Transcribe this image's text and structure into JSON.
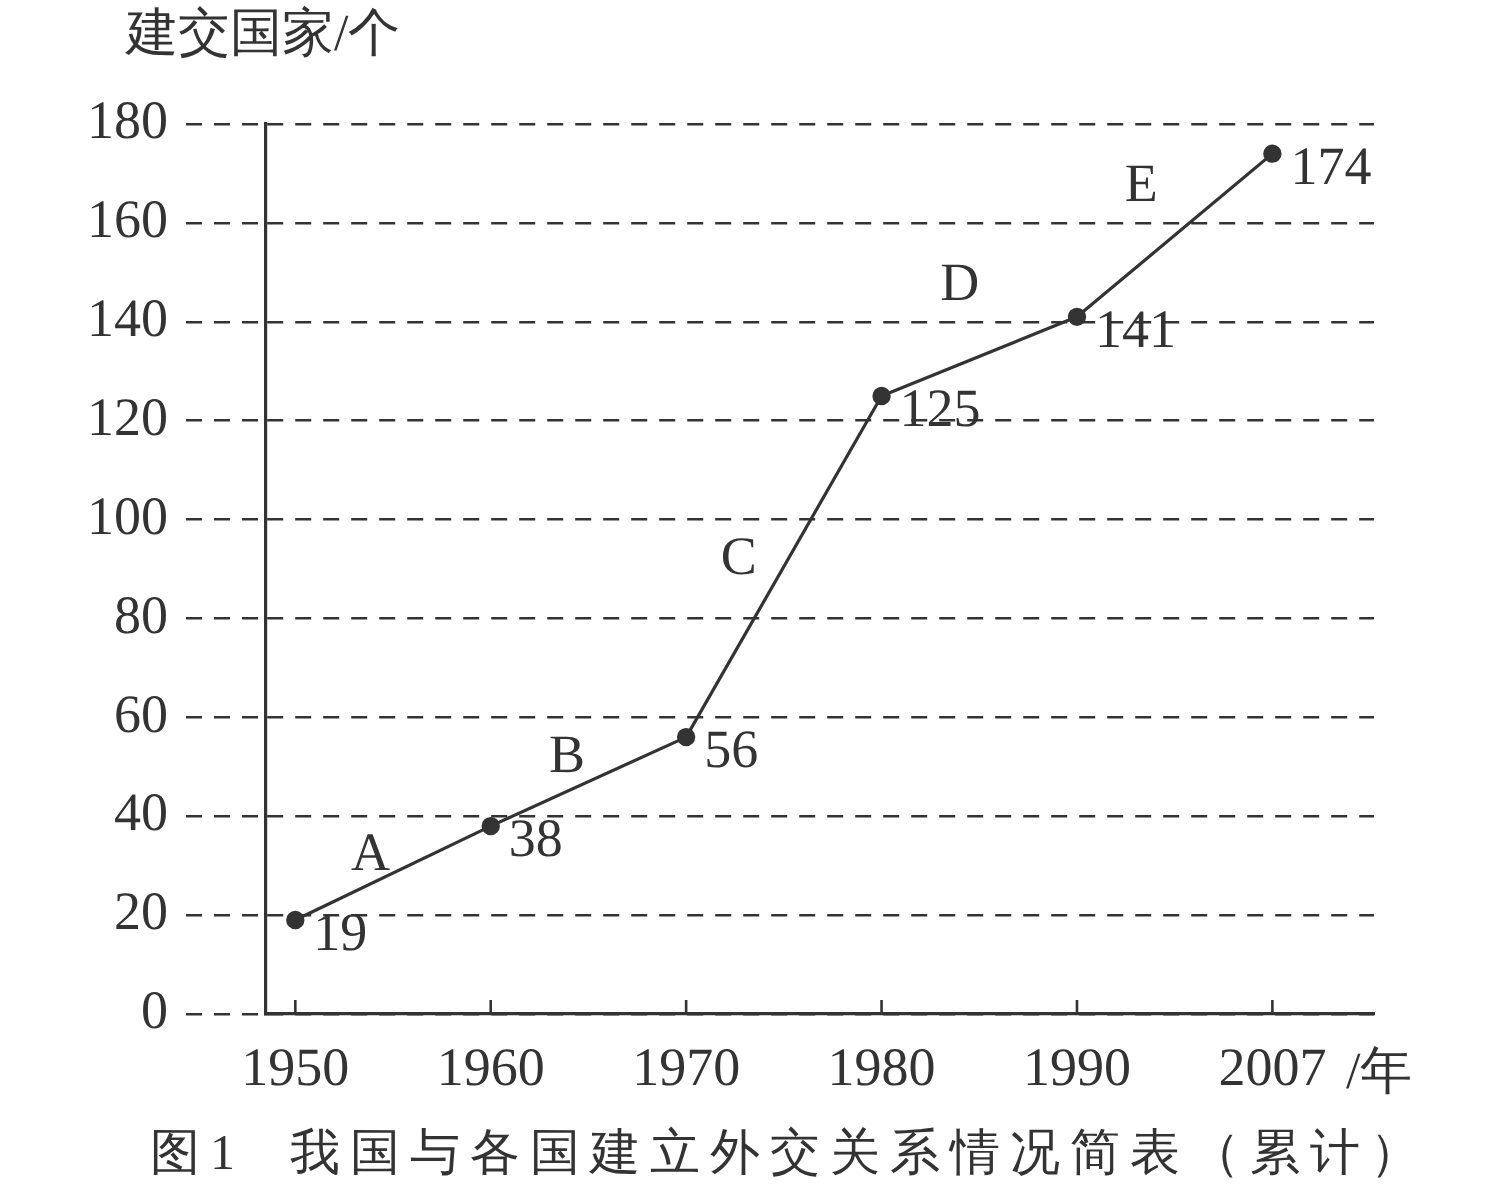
{
  "chart_data": {
    "type": "line",
    "title": "图1  我国与各国建立外交关系情况简表（累计）",
    "ylabel": "建交国家/个",
    "xlabel": "/年",
    "annotations": [
      "A",
      "B",
      "C",
      "D",
      "E"
    ],
    "categories": [
      "1950",
      "1960",
      "1970",
      "1980",
      "1990",
      "2007"
    ],
    "series": [
      {
        "color": "#333333",
        "values": [
          19,
          38,
          56,
          125,
          141,
          174
        ]
      }
    ],
    "ylim": [
      0,
      180
    ],
    "yticks": [
      0,
      20,
      40,
      60,
      80,
      100,
      120,
      140,
      160,
      180
    ],
    "grid": "y",
    "legend": false,
    "marker": "circle",
    "line_style": "solid",
    "data_labels": true
  }
}
